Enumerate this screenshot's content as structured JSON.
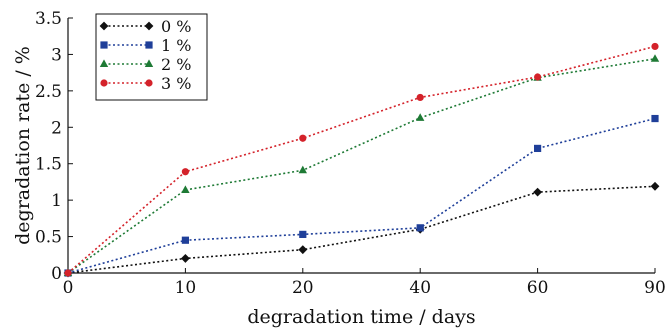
{
  "chart_data": {
    "type": "line",
    "title": "",
    "xlabel": "degradation time / days",
    "ylabel": "degradation rate / %",
    "x": [
      0,
      10,
      20,
      40,
      60,
      90
    ],
    "x_tick_labels": [
      "0",
      "10",
      "20",
      "40",
      "60",
      "90"
    ],
    "y_ticks": [
      0,
      0.5,
      1,
      1.5,
      2,
      2.5,
      3,
      3.5
    ],
    "y_tick_labels": [
      "0",
      "0.5",
      "1",
      "1.5",
      "2",
      "2.5",
      "3",
      "3.5"
    ],
    "ylim": [
      0,
      3.5
    ],
    "grid": false,
    "legend_position": "top-left",
    "series": [
      {
        "name": "0 %",
        "color": "#111111",
        "marker": "diamond",
        "values": [
          0,
          0.2,
          0.32,
          0.6,
          1.11,
          1.19
        ]
      },
      {
        "name": "1 %",
        "color": "#1f3f99",
        "marker": "square",
        "values": [
          0,
          0.45,
          0.53,
          0.62,
          1.71,
          2.12
        ]
      },
      {
        "name": "2 %",
        "color": "#1e7a35",
        "marker": "triangle",
        "values": [
          0,
          1.14,
          1.41,
          2.13,
          2.68,
          2.94
        ]
      },
      {
        "name": "3 %",
        "color": "#d4222a",
        "marker": "circle",
        "values": [
          0,
          1.39,
          1.85,
          2.41,
          2.69,
          3.11
        ]
      }
    ]
  }
}
